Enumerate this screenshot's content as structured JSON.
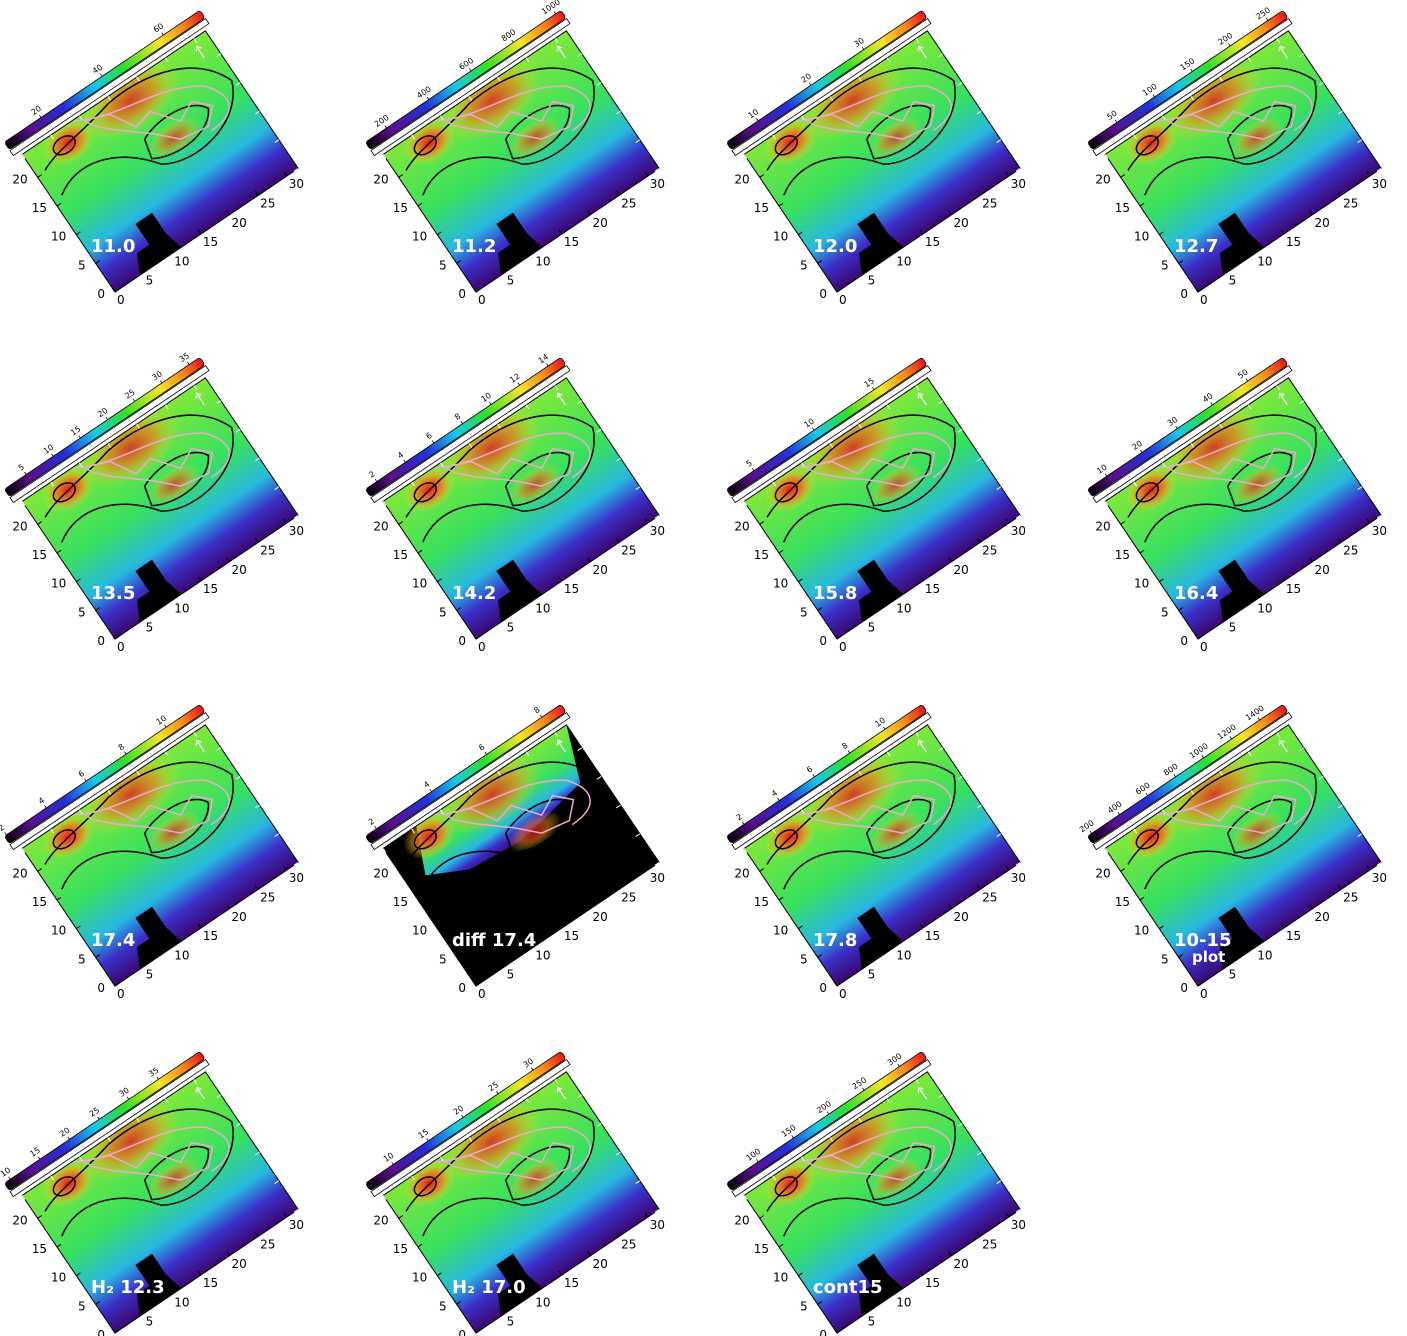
{
  "axes": {
    "xlim": [
      0,
      32
    ],
    "ylim": [
      0,
      24
    ],
    "x_ticks": [
      0,
      5,
      10,
      15,
      20,
      25,
      30
    ],
    "y_ticks": [
      0,
      5,
      10,
      15,
      20
    ]
  },
  "panels": [
    {
      "label": "11.0",
      "clim": [
        8,
        72
      ],
      "colorbar_ticks": [
        20,
        40,
        60
      ]
    },
    {
      "label": "11.2",
      "clim": [
        100,
        1025
      ],
      "colorbar_ticks": [
        200,
        400,
        600,
        800,
        1000
      ]
    },
    {
      "label": "12.0",
      "clim": [
        4,
        41
      ],
      "colorbar_ticks": [
        10,
        20,
        30
      ]
    },
    {
      "label": "12.7",
      "clim": [
        11,
        270
      ],
      "colorbar_ticks": [
        50,
        100,
        150,
        200,
        250
      ]
    },
    {
      "label": "13.5",
      "clim": [
        1,
        37
      ],
      "colorbar_ticks": [
        5,
        10,
        15,
        20,
        25,
        30,
        35
      ]
    },
    {
      "label": "14.2",
      "clim": [
        1.2,
        14.9
      ],
      "colorbar_ticks": [
        2,
        4,
        6,
        8,
        10,
        12,
        14
      ]
    },
    {
      "label": "15.8",
      "clim": [
        2.7,
        19
      ],
      "colorbar_ticks": [
        5,
        10,
        15
      ]
    },
    {
      "label": "16.4",
      "clim": [
        4.5,
        60
      ],
      "colorbar_ticks": [
        10,
        20,
        30,
        40,
        50
      ]
    },
    {
      "label": "17.4",
      "clim": [
        1.9,
        11.7
      ],
      "colorbar_ticks": [
        2,
        4,
        6,
        8,
        10
      ]
    },
    {
      "label": "diff 17.4",
      "clim": [
        1.6,
        8.7
      ],
      "colorbar_ticks": [
        2,
        4,
        6,
        8
      ]
    },
    {
      "label": "17.8",
      "clim": [
        1,
        12.1
      ],
      "colorbar_ticks": [
        2,
        4,
        6,
        8,
        10
      ]
    },
    {
      "label": "10-15",
      "sublabel": "plot",
      "clim": [
        170,
        1567
      ],
      "colorbar_ticks": [
        200,
        400,
        600,
        800,
        1000,
        1200,
        1400
      ]
    },
    {
      "label": "H₂ 12.3",
      "clim": [
        9,
        42
      ],
      "colorbar_ticks": [
        10,
        15,
        20,
        25,
        30,
        35
      ]
    },
    {
      "label": "H₂ 17.0",
      "clim": [
        6,
        34
      ],
      "colorbar_ticks": [
        10,
        15,
        20,
        25,
        30
      ]
    },
    {
      "label": "cont15",
      "clim": [
        55,
        332
      ],
      "colorbar_ticks": [
        100,
        150,
        200,
        250,
        300
      ]
    }
  ]
}
